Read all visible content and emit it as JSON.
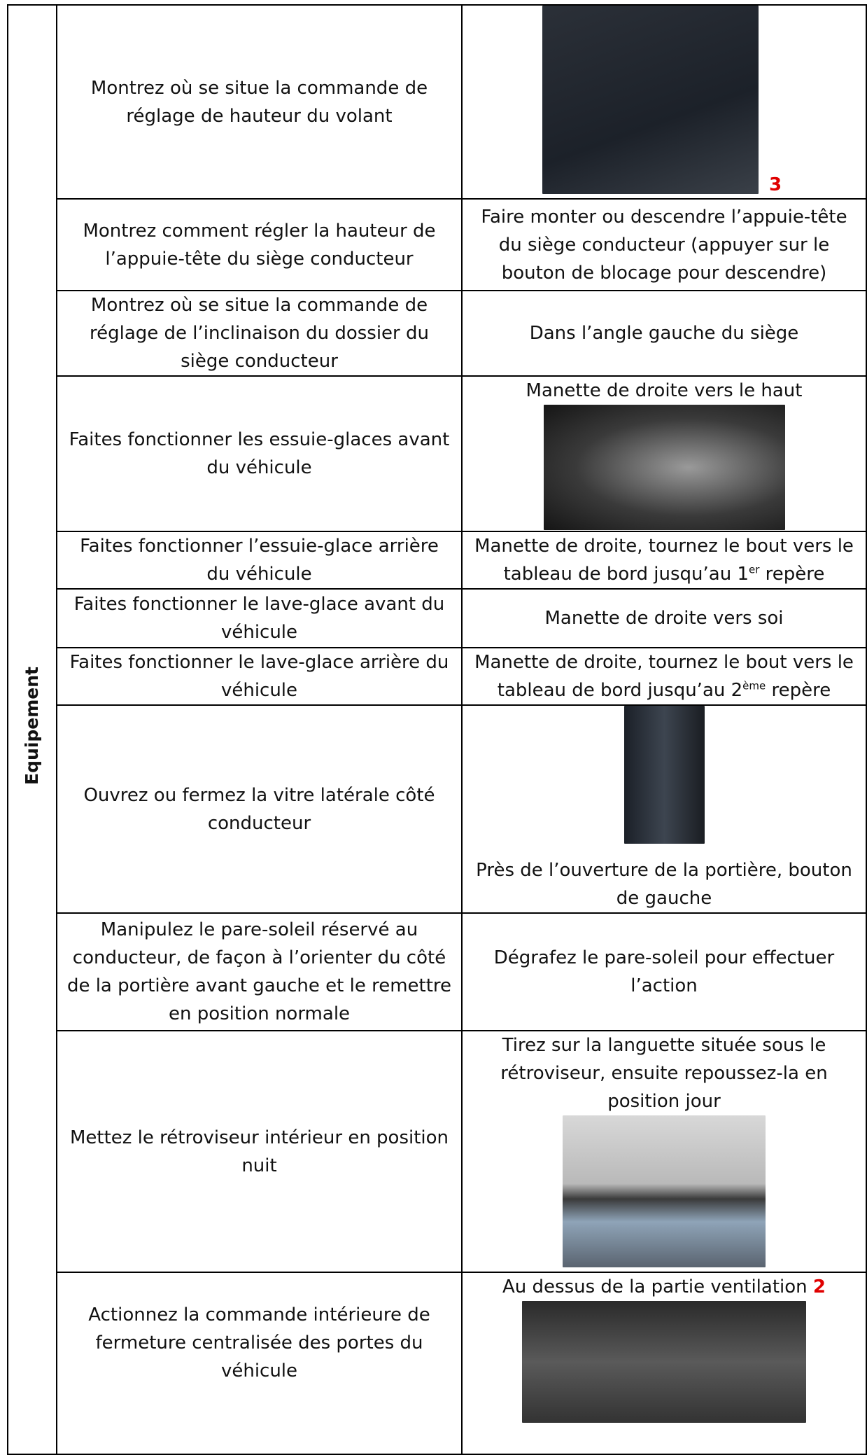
{
  "side_label": "Equipement",
  "rows": [
    {
      "instruction": "Montrez où se situe la commande de réglage de hauteur du volant",
      "marker": "3"
    },
    {
      "instruction": "Montrez comment régler la hauteur de l’appuie-tête du siège conducteur",
      "answer": "Faire monter ou descendre l’appuie-tête du siège conducteur (appuyer sur le bouton de blocage pour descendre)"
    },
    {
      "instruction": "Montrez où se situe la commande de réglage de l’inclinaison du dossier du siège conducteur",
      "answer": "Dans l’angle gauche du siège"
    },
    {
      "instruction": "Faites fonctionner les essuie-glaces avant du véhicule",
      "answer": "Manette de droite vers le haut"
    },
    {
      "instruction": "Faites fonctionner l’essuie-glace arrière du véhicule",
      "answer": "Manette de droite, tournez le bout vers le tableau de bord jusqu’au 1",
      "answer_sup": "er",
      "answer_after": " repère"
    },
    {
      "instruction": "Faites fonctionner le lave-glace avant du véhicule",
      "answer": "Manette de droite vers soi"
    },
    {
      "instruction": "Faites fonctionner le lave-glace arrière du véhicule",
      "answer": "Manette de droite, tournez le bout vers le tableau de bord jusqu’au 2",
      "answer_sup": "ème",
      "answer_after": " repère"
    },
    {
      "instruction": "Ouvrez ou fermez la vitre latérale côté conducteur",
      "answer": "Près de l’ouverture de la portière, bouton de gauche"
    },
    {
      "instruction": "Manipulez le pare-soleil réservé au conducteur, de façon à l’orienter du côté de la portière avant gauche et le remettre en position normale",
      "answer": "Dégrafez le pare-soleil pour effectuer l’action"
    },
    {
      "instruction": "Mettez le rétroviseur intérieur en position nuit",
      "answer": "Tirez sur la languette située sous le rétroviseur, ensuite repoussez-la en position jour"
    },
    {
      "instruction": "Actionnez la commande intérieure de fermeture centralisée des portes du véhicule",
      "answer": "Au dessus de la partie ventilation",
      "marker": "2"
    }
  ]
}
